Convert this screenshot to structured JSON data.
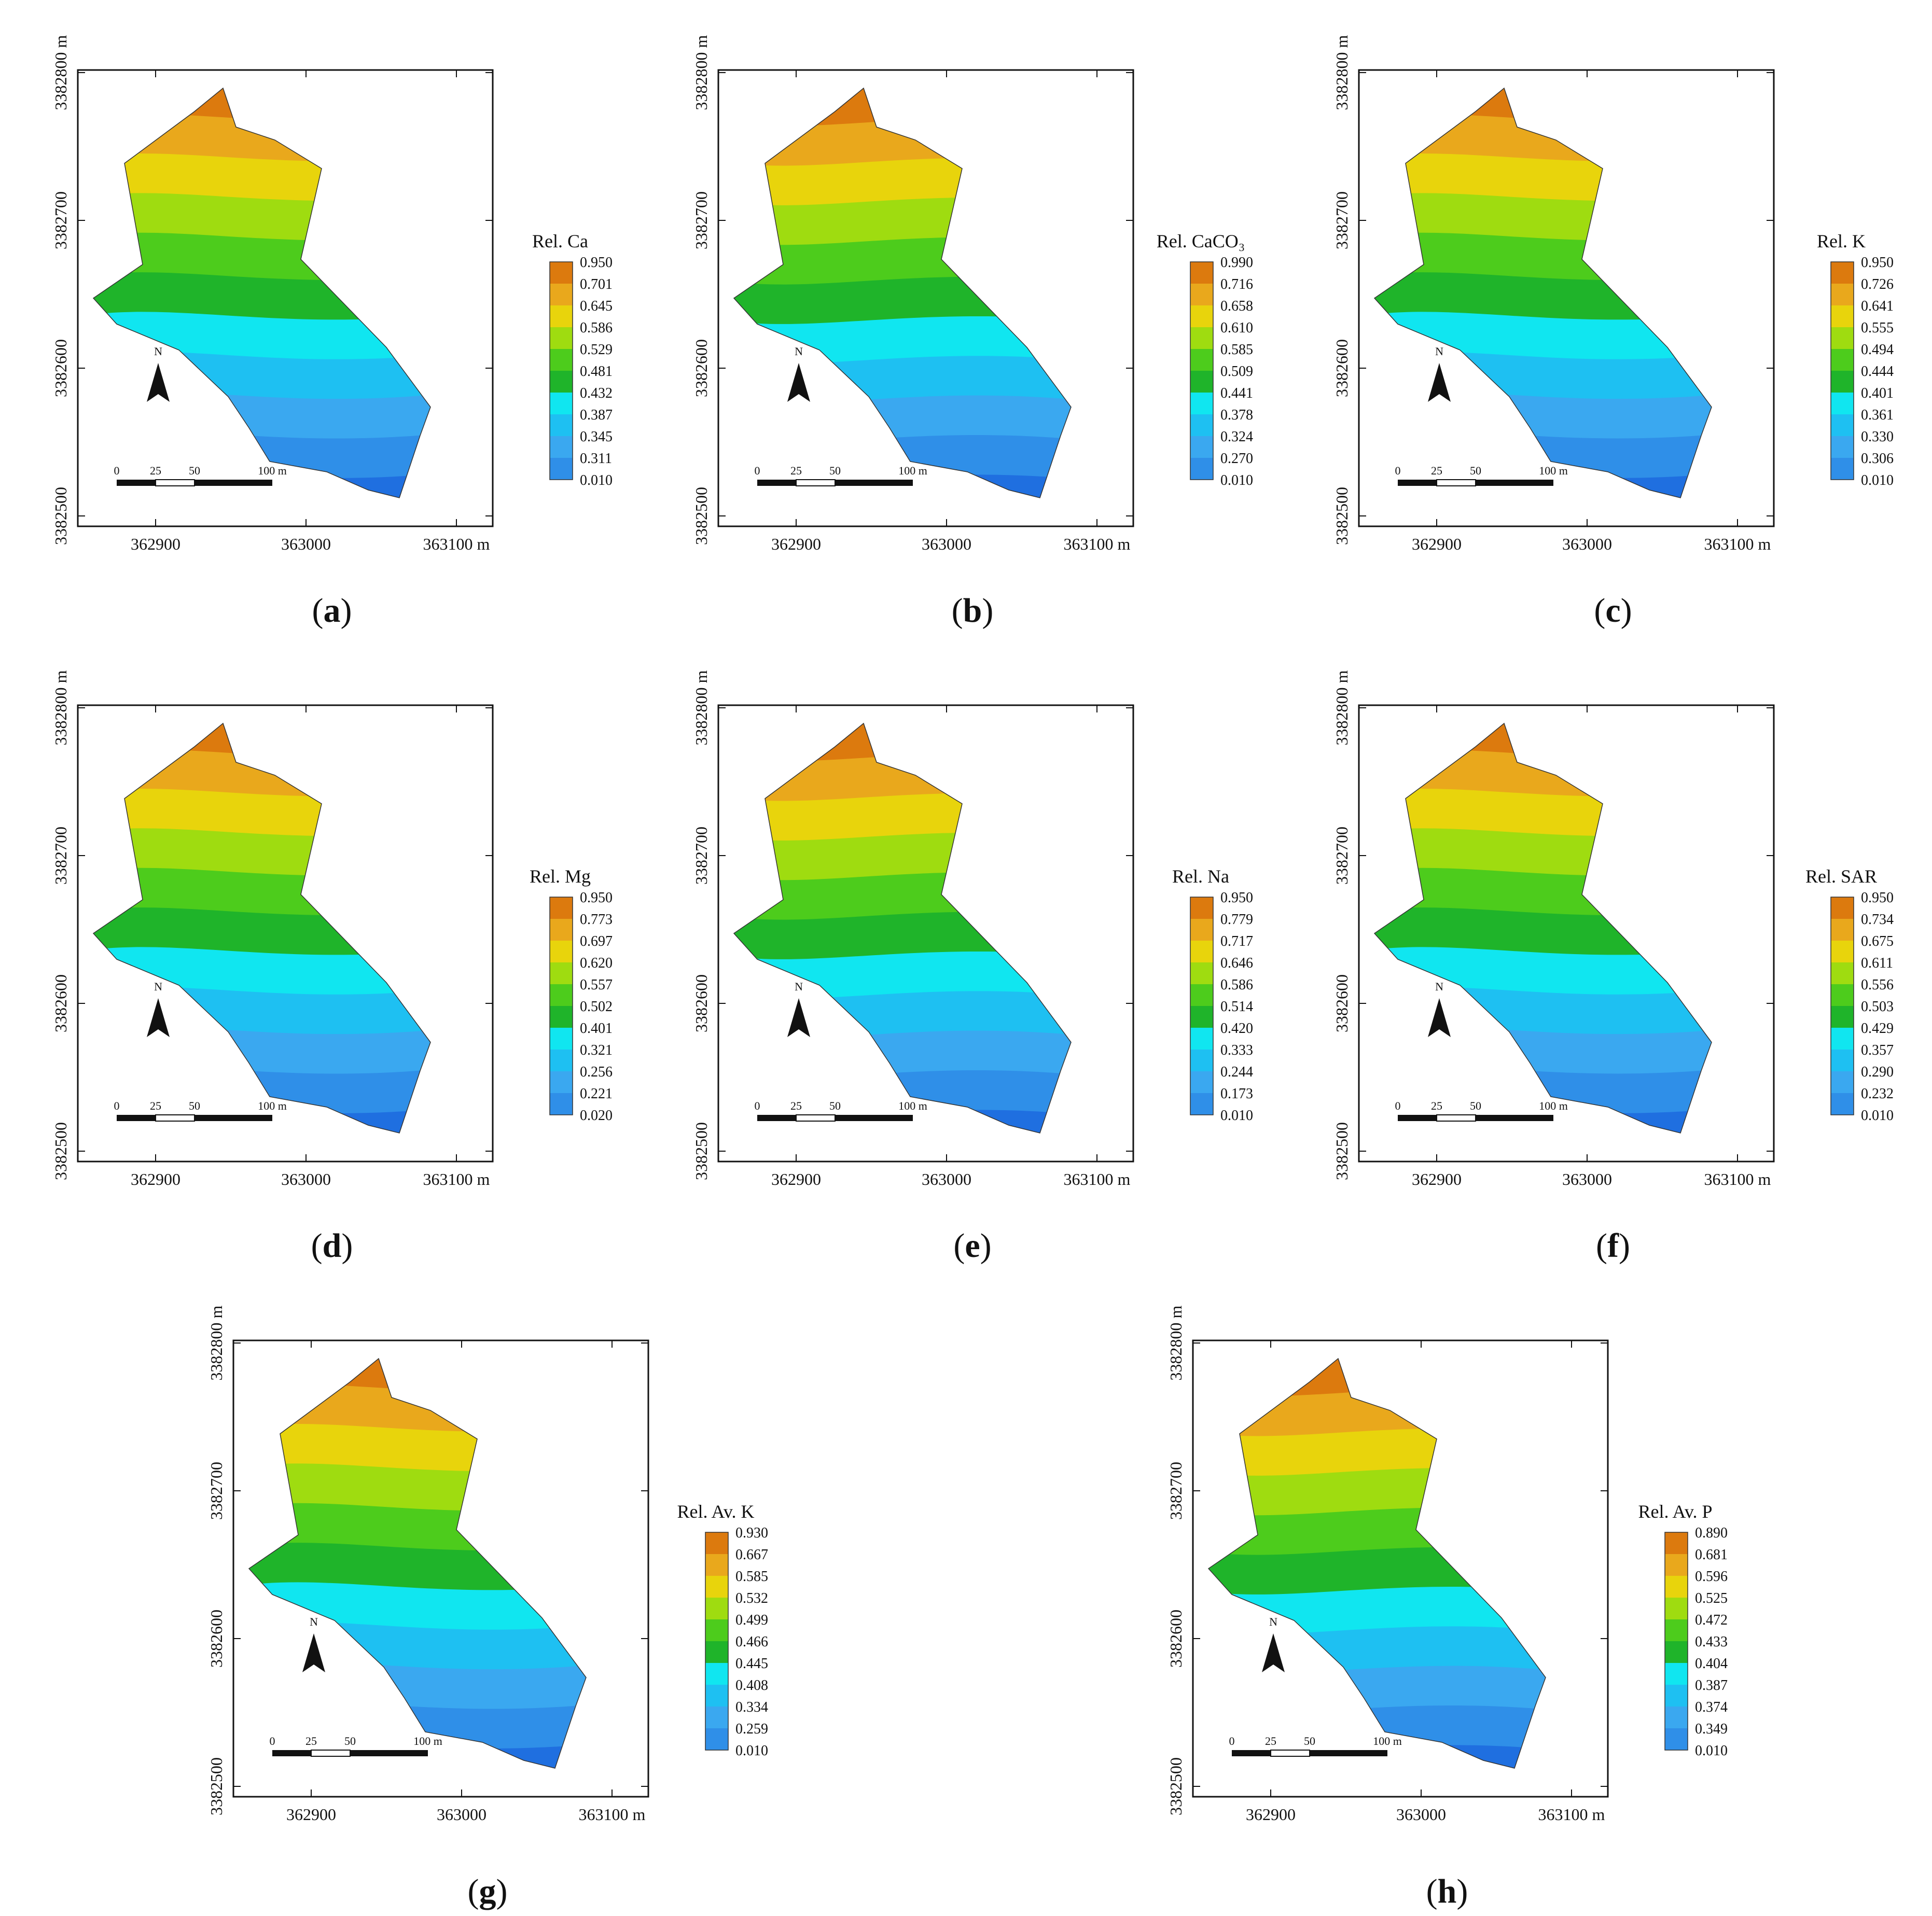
{
  "common": {
    "x_ticks": [
      "362900",
      "363000",
      "363100 m"
    ],
    "y_ticks": [
      "3382500",
      "3382600",
      "3382700",
      "3382800 m"
    ],
    "north_label": "N",
    "scale_labels": [
      "0",
      "25",
      "50",
      "100 m"
    ]
  },
  "colors": [
    "#1f6fe0",
    "#2f8fe8",
    "#3aa8f0",
    "#1ec0f2",
    "#10e6f0",
    "#1fb42a",
    "#4dcc1c",
    "#9fdc10",
    "#e8d40c",
    "#e9a81c",
    "#dc7a0e"
  ],
  "panels": [
    {
      "caption_letter": "a",
      "legend": {
        "title": "Rel. Ca",
        "values": [
          "0.950",
          "0.701",
          "0.645",
          "0.586",
          "0.529",
          "0.481",
          "0.432",
          "0.387",
          "0.345",
          "0.311",
          "0.010"
        ]
      }
    },
    {
      "caption_letter": "b",
      "legend": {
        "title": "Rel. CaCO₃",
        "values": [
          "0.990",
          "0.716",
          "0.658",
          "0.610",
          "0.585",
          "0.509",
          "0.441",
          "0.378",
          "0.324",
          "0.270",
          "0.010"
        ]
      }
    },
    {
      "caption_letter": "c",
      "legend": {
        "title": "Rel. K",
        "values": [
          "0.950",
          "0.726",
          "0.641",
          "0.555",
          "0.494",
          "0.444",
          "0.401",
          "0.361",
          "0.330",
          "0.306",
          "0.010"
        ]
      }
    },
    {
      "caption_letter": "d",
      "legend": {
        "title": "Rel. Mg",
        "values": [
          "0.950",
          "0.773",
          "0.697",
          "0.620",
          "0.557",
          "0.502",
          "0.401",
          "0.321",
          "0.256",
          "0.221",
          "0.020"
        ]
      }
    },
    {
      "caption_letter": "e",
      "legend": {
        "title": "Rel. Na",
        "values": [
          "0.950",
          "0.779",
          "0.717",
          "0.646",
          "0.586",
          "0.514",
          "0.420",
          "0.333",
          "0.244",
          "0.173",
          "0.010"
        ]
      }
    },
    {
      "caption_letter": "f",
      "legend": {
        "title": "Rel. SAR",
        "values": [
          "0.950",
          "0.734",
          "0.675",
          "0.611",
          "0.556",
          "0.503",
          "0.429",
          "0.357",
          "0.290",
          "0.232",
          "0.010"
        ]
      }
    },
    {
      "caption_letter": "g",
      "legend": {
        "title": "Rel. Av. K",
        "values": [
          "0.930",
          "0.667",
          "0.585",
          "0.532",
          "0.499",
          "0.466",
          "0.445",
          "0.408",
          "0.334",
          "0.259",
          "0.010"
        ]
      }
    },
    {
      "caption_letter": "h",
      "legend": {
        "title": "Rel. Av. P",
        "values": [
          "0.890",
          "0.681",
          "0.596",
          "0.525",
          "0.472",
          "0.433",
          "0.404",
          "0.387",
          "0.374",
          "0.349",
          "0.010"
        ]
      }
    }
  ]
}
